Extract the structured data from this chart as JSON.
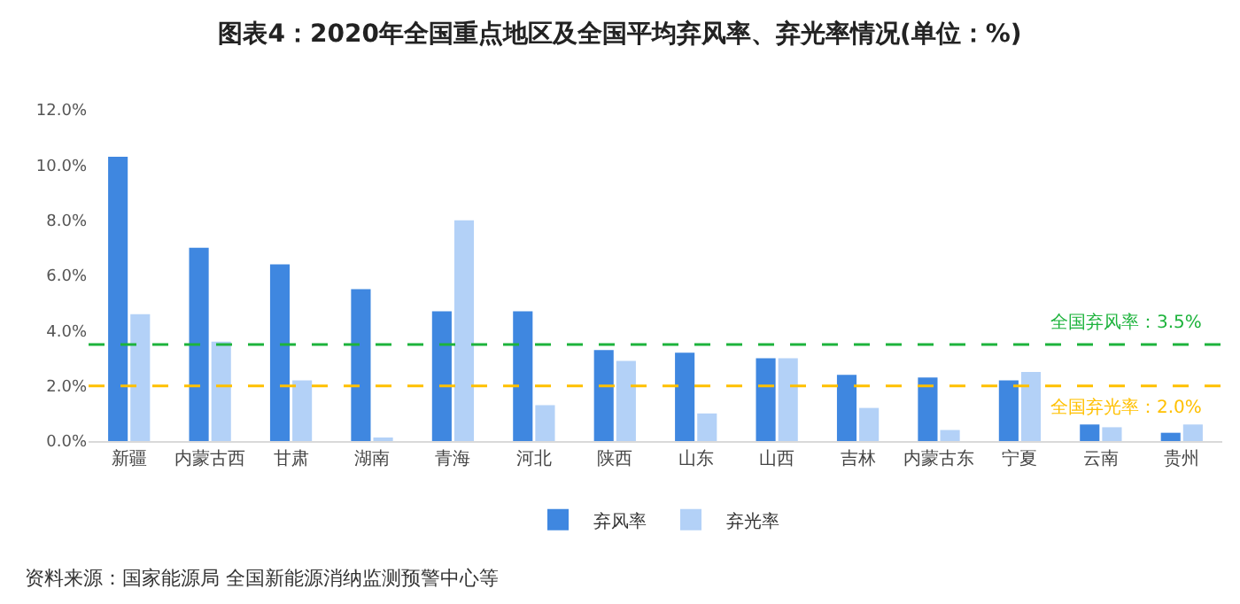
{
  "chart_data": {
    "type": "bar",
    "title": "图表4：2020年全国重点地区及全国平均弃风率、弃光率情况(单位：%)",
    "categories": [
      "新疆",
      "内蒙古西",
      "甘肃",
      "湖南",
      "青海",
      "河北",
      "陕西",
      "山东",
      "山西",
      "吉林",
      "内蒙古东",
      "宁夏",
      "云南",
      "贵州"
    ],
    "series": [
      {
        "name": "弃风率",
        "color": "#3f87e0",
        "values": [
          10.3,
          7.0,
          6.4,
          5.5,
          4.7,
          4.7,
          3.3,
          3.2,
          3.0,
          2.4,
          2.3,
          2.2,
          0.6,
          0.3
        ]
      },
      {
        "name": "弃光率",
        "color": "#b3d1f7",
        "values": [
          4.6,
          3.6,
          2.2,
          0.1,
          8.0,
          1.3,
          2.9,
          1.0,
          3.0,
          1.2,
          0.4,
          2.5,
          0.5,
          0.6
        ]
      }
    ],
    "ylim": [
      0,
      12
    ],
    "yticks": [
      {
        "value": 0,
        "label": "0.0%"
      },
      {
        "value": 2,
        "label": "2.0%"
      },
      {
        "value": 4,
        "label": "4.0%"
      },
      {
        "value": 6,
        "label": "6.0%"
      },
      {
        "value": 8,
        "label": "8.0%"
      },
      {
        "value": 10,
        "label": "10.0%"
      },
      {
        "value": 12,
        "label": "12.0%"
      }
    ],
    "ref_lines": [
      {
        "axis": "y",
        "value": 3.5,
        "label": "全国弃风率：3.5%",
        "color": "#1db33c",
        "line_style": "dashed"
      },
      {
        "axis": "y",
        "value": 2.0,
        "label": "全国弃光率：2.0%",
        "color": "#ffc000",
        "line_style": "dashed"
      }
    ],
    "legend": "bottom",
    "grid": false,
    "annotations": [
      "资料来源：国家能源局 全国新能源消纳监测预警中心等"
    ]
  }
}
